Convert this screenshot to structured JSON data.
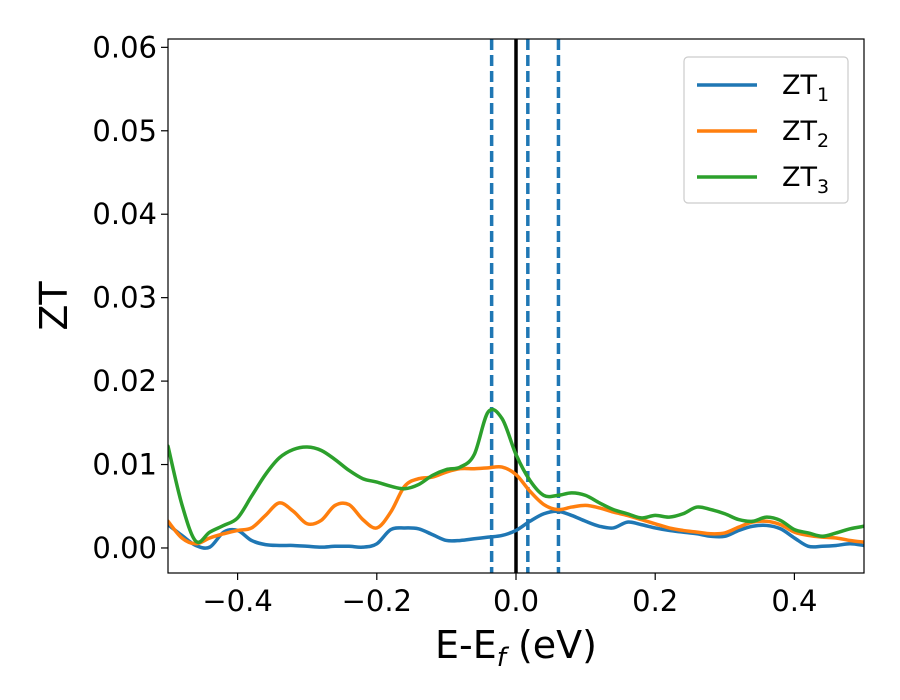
{
  "chart_data": {
    "type": "line",
    "xlabel_main": "E-E",
    "xlabel_sub": "f",
    "xlabel_unit": " (eV)",
    "ylabel": "ZT",
    "xlim": [
      -0.5,
      0.5
    ],
    "ylim": [
      -0.003,
      0.061
    ],
    "x_ticks": [
      -0.4,
      -0.2,
      0.0,
      0.2,
      0.4
    ],
    "x_tick_labels": [
      "−0.4",
      "−0.2",
      "0.0",
      "0.2",
      "0.4"
    ],
    "y_ticks": [
      0.0,
      0.01,
      0.02,
      0.03,
      0.04,
      0.05,
      0.06
    ],
    "y_tick_labels": [
      "0.00",
      "0.01",
      "0.02",
      "0.03",
      "0.04",
      "0.05",
      "0.06"
    ],
    "grid": false,
    "legend_position": "top-right",
    "vertical_lines": [
      {
        "x": 0.0,
        "style": "solid",
        "color": "#000000"
      },
      {
        "x": -0.035,
        "style": "dashed",
        "color": "#1f77b4"
      },
      {
        "x": 0.017,
        "style": "dashed",
        "color": "#1f77b4"
      },
      {
        "x": 0.061,
        "style": "dashed",
        "color": "#1f77b4"
      }
    ],
    "series": [
      {
        "name": "ZT",
        "sub": "1",
        "color": "#1f77b4",
        "x": [
          -0.5,
          -0.48,
          -0.46,
          -0.44,
          -0.42,
          -0.4,
          -0.38,
          -0.36,
          -0.34,
          -0.32,
          -0.3,
          -0.28,
          -0.26,
          -0.24,
          -0.22,
          -0.2,
          -0.18,
          -0.16,
          -0.14,
          -0.12,
          -0.1,
          -0.08,
          -0.06,
          -0.04,
          -0.02,
          0.0,
          0.02,
          0.04,
          0.06,
          0.08,
          0.1,
          0.12,
          0.14,
          0.16,
          0.18,
          0.2,
          0.22,
          0.24,
          0.26,
          0.28,
          0.3,
          0.32,
          0.34,
          0.36,
          0.38,
          0.4,
          0.42,
          0.44,
          0.46,
          0.48,
          0.5
        ],
        "y": [
          0.0028,
          0.0015,
          0.0003,
          0.0001,
          0.0019,
          0.0021,
          0.0009,
          0.0004,
          0.0003,
          0.0003,
          0.0002,
          0.0001,
          0.0002,
          0.0002,
          0.0001,
          0.0005,
          0.0022,
          0.0024,
          0.0023,
          0.0016,
          0.0009,
          0.0009,
          0.0011,
          0.0013,
          0.0015,
          0.0021,
          0.0032,
          0.0041,
          0.0044,
          0.0039,
          0.0032,
          0.0026,
          0.0024,
          0.0031,
          0.0028,
          0.0024,
          0.0021,
          0.0019,
          0.0017,
          0.0014,
          0.0014,
          0.0021,
          0.0026,
          0.0027,
          0.0023,
          0.0012,
          0.0002,
          0.0002,
          0.0003,
          0.0005,
          0.0003
        ]
      },
      {
        "name": "ZT",
        "sub": "2",
        "color": "#ff7f0e",
        "x": [
          -0.5,
          -0.48,
          -0.46,
          -0.44,
          -0.42,
          -0.4,
          -0.38,
          -0.36,
          -0.34,
          -0.32,
          -0.3,
          -0.28,
          -0.26,
          -0.24,
          -0.22,
          -0.2,
          -0.18,
          -0.16,
          -0.14,
          -0.12,
          -0.1,
          -0.08,
          -0.06,
          -0.04,
          -0.02,
          0.0,
          0.02,
          0.04,
          0.06,
          0.08,
          0.1,
          0.12,
          0.14,
          0.16,
          0.18,
          0.2,
          0.22,
          0.24,
          0.26,
          0.28,
          0.3,
          0.32,
          0.34,
          0.36,
          0.38,
          0.4,
          0.42,
          0.44,
          0.46,
          0.48,
          0.5
        ],
        "y": [
          0.0032,
          0.0012,
          0.0005,
          0.0012,
          0.0017,
          0.0021,
          0.0024,
          0.0039,
          0.0054,
          0.0044,
          0.0029,
          0.0033,
          0.0051,
          0.0052,
          0.0034,
          0.0024,
          0.0043,
          0.0074,
          0.0083,
          0.0085,
          0.0091,
          0.0095,
          0.0095,
          0.0096,
          0.0097,
          0.0088,
          0.0068,
          0.0052,
          0.0046,
          0.0049,
          0.0051,
          0.0048,
          0.0043,
          0.0039,
          0.0034,
          0.0029,
          0.0024,
          0.0021,
          0.0019,
          0.0017,
          0.0018,
          0.0025,
          0.0031,
          0.0032,
          0.0028,
          0.0019,
          0.0015,
          0.0013,
          0.0012,
          0.0009,
          0.0007
        ]
      },
      {
        "name": "ZT",
        "sub": "3",
        "color": "#2ca02c",
        "x": [
          -0.5,
          -0.48,
          -0.46,
          -0.44,
          -0.42,
          -0.4,
          -0.38,
          -0.36,
          -0.34,
          -0.32,
          -0.3,
          -0.28,
          -0.26,
          -0.24,
          -0.22,
          -0.2,
          -0.18,
          -0.16,
          -0.14,
          -0.12,
          -0.1,
          -0.08,
          -0.06,
          -0.04,
          -0.02,
          0.0,
          0.02,
          0.04,
          0.06,
          0.08,
          0.1,
          0.12,
          0.14,
          0.16,
          0.18,
          0.2,
          0.22,
          0.24,
          0.26,
          0.28,
          0.3,
          0.32,
          0.34,
          0.36,
          0.38,
          0.4,
          0.42,
          0.44,
          0.46,
          0.48,
          0.5
        ],
        "y": [
          0.0122,
          0.0052,
          0.0008,
          0.0019,
          0.0027,
          0.0036,
          0.0062,
          0.0088,
          0.0108,
          0.0118,
          0.0121,
          0.0117,
          0.0106,
          0.0093,
          0.0083,
          0.0079,
          0.0074,
          0.0071,
          0.0076,
          0.0087,
          0.0094,
          0.0097,
          0.0112,
          0.0163,
          0.0155,
          0.0112,
          0.0081,
          0.0063,
          0.0063,
          0.0066,
          0.0063,
          0.0054,
          0.0046,
          0.0041,
          0.0036,
          0.0039,
          0.0037,
          0.0041,
          0.0049,
          0.0046,
          0.0041,
          0.0034,
          0.0032,
          0.0037,
          0.0033,
          0.0022,
          0.0018,
          0.0014,
          0.0018,
          0.0023,
          0.0026
        ]
      }
    ]
  }
}
